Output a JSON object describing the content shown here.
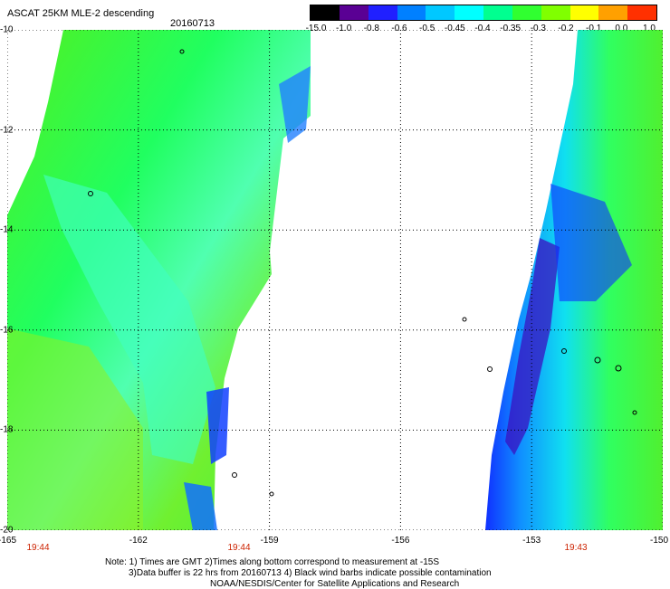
{
  "title": "ASCAT 25KM MLE-2 descending",
  "date": "20160713",
  "colorbar": {
    "labels": [
      "-15.0",
      "-1.0",
      "-0.8",
      "-0.6",
      "-0.5",
      "-0.45",
      "-0.4",
      "-0.35",
      "-0.3",
      "-0.2",
      "-0.1",
      "0.0",
      "1.0"
    ],
    "colors": [
      "#000000",
      "#5a0094",
      "#2020ff",
      "#0080ff",
      "#00c8ff",
      "#00ffff",
      "#00ff90",
      "#30ff30",
      "#80ff00",
      "#ffff00",
      "#ffa000",
      "#ff3000"
    ]
  },
  "axes": {
    "lon_ticks": [
      "-165",
      "-162",
      "-159",
      "-156",
      "-153",
      "-150"
    ],
    "lat_ticks": [
      "-10",
      "-12",
      "-14",
      "-16",
      "-18",
      "-20"
    ],
    "lon_range": [
      -165,
      -150
    ],
    "lat_range": [
      -20,
      -10
    ]
  },
  "swath_times": [
    "19:44",
    "19:44",
    "19:43"
  ],
  "notes": {
    "line1": "Note: 1) Times are GMT 2)Times along bottom correspond to measurement at -15S",
    "line2": "3)Data buffer is 22 hrs from 20160713 4) Black wind barbs indicate possible contamination",
    "line3": "NOAA/NESDIS/Center for Satellite Applications and Research"
  }
}
